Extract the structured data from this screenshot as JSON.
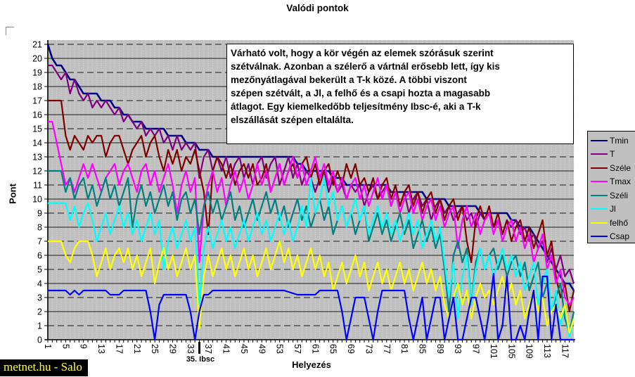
{
  "title": "Valódi pontok",
  "watermark": "metnet.hu - Salo",
  "annotation": {
    "text": "Várható volt, hogy a kör végén az elemek szórásuk szerint\nszétválnak. Azonban a szélerő a vártnál erősebb lett, így kis\nmezőnyátlagával bekerült a T-k közé. A többi viszont\nszépen szétvált, a Jl, a felhő és a csapi hozta a magasabb\nátlagot. Egy kiemelkedőbb teljesítmény Ibsc-é, aki a T-k\nelszállását szépen eltalálta."
  },
  "special_tick": {
    "label": "35. Ibsc",
    "x": 35
  },
  "chart_data": {
    "type": "line",
    "title": "Valódi pontok",
    "xlabel": "Helyezés",
    "ylabel": "Pont",
    "x_range": [
      1,
      119
    ],
    "ylim": [
      0,
      21
    ],
    "x_ticks": [
      1,
      5,
      9,
      13,
      17,
      21,
      25,
      29,
      33,
      37,
      41,
      45,
      49,
      53,
      57,
      61,
      65,
      69,
      73,
      77,
      81,
      85,
      89,
      93,
      97,
      101,
      105,
      109,
      113,
      117
    ],
    "y_ticks": [
      0,
      1,
      2,
      3,
      4,
      5,
      6,
      7,
      8,
      9,
      10,
      11,
      12,
      13,
      14,
      15,
      16,
      17,
      18,
      19,
      20,
      21
    ],
    "grid": {
      "horizontal": true,
      "vertical": true
    },
    "legend_position": "right",
    "plot_bg": "#c0c0c0",
    "series": [
      {
        "name": "Tmin",
        "color": "#000080",
        "width": 2.6,
        "values": [
          21,
          20,
          19.5,
          19.5,
          19,
          18.5,
          18.5,
          18,
          17.5,
          17.5,
          17.5,
          17.5,
          17,
          17,
          17,
          16.5,
          16.5,
          16,
          16,
          15.5,
          15.5,
          15.5,
          15,
          15,
          15,
          15,
          15,
          14.5,
          14.5,
          14.5,
          14.5,
          14,
          14,
          14,
          13.5,
          13.5,
          13.5,
          13,
          13,
          13,
          13,
          13,
          13,
          13,
          13,
          13,
          13,
          13,
          13,
          13,
          13,
          13,
          13,
          13,
          13,
          13,
          12.5,
          12.5,
          12,
          12,
          12,
          12,
          12,
          12,
          11.5,
          11.5,
          11.5,
          11,
          11,
          11,
          11,
          11,
          11,
          11,
          11,
          11,
          11,
          10.5,
          10.5,
          10.5,
          10.5,
          10.5,
          10.5,
          10.5,
          10.5,
          10,
          10,
          10,
          10,
          10,
          9.5,
          9.5,
          9.5,
          9.5,
          9.5,
          9.5,
          9.5,
          9,
          9,
          9,
          9,
          9,
          9,
          9,
          8.5,
          8.5,
          8,
          8,
          8,
          7.5,
          7,
          6.5,
          6,
          5.5,
          5,
          4.5,
          4,
          4,
          3.5
        ]
      },
      {
        "name": "T",
        "color": "#800080",
        "width": 2.2,
        "values": [
          19.5,
          19.5,
          19,
          18.5,
          19,
          17.5,
          18.5,
          17.5,
          17,
          17.5,
          16.5,
          17,
          16.5,
          17,
          16.5,
          16,
          16.5,
          15.5,
          16,
          15.5,
          15,
          15.5,
          14.5,
          15,
          14.5,
          15,
          14,
          14.5,
          13.5,
          14.5,
          13.5,
          14,
          13.5,
          14,
          11.5,
          13,
          13.5,
          12,
          13,
          12,
          13,
          11.5,
          12.5,
          13,
          11.5,
          12.5,
          11,
          12.5,
          13,
          11.5,
          12.5,
          13,
          11,
          12,
          13,
          11.5,
          12.5,
          11,
          12,
          11.5,
          10.5,
          11.5,
          12,
          10.5,
          11.5,
          10.5,
          11,
          10,
          11,
          10.5,
          11,
          9.5,
          10.5,
          11,
          10,
          10.5,
          11,
          9.5,
          10.5,
          9.5,
          10.5,
          9,
          10,
          10.5,
          9.5,
          10,
          8.5,
          9.5,
          10,
          9,
          9.5,
          8.5,
          9,
          9.5,
          8.5,
          9,
          8,
          9,
          8.5,
          9,
          8,
          8.5,
          7.5,
          8.5,
          8,
          8.5,
          7.5,
          8,
          7,
          7.5,
          6.5,
          7,
          5.5,
          6.5,
          5,
          6,
          4.5,
          5,
          4
        ]
      },
      {
        "name": "Széle",
        "color": "#800000",
        "width": 2.2,
        "values": [
          17,
          17,
          17,
          17,
          14.5,
          13.5,
          14.5,
          14,
          13.5,
          14.5,
          14,
          14.5,
          14.5,
          13,
          14,
          14.5,
          14.5,
          13.5,
          12.5,
          13.5,
          14,
          14.5,
          13,
          14,
          14.5,
          13,
          12,
          13.5,
          12.5,
          13.5,
          12,
          13,
          12.5,
          13.5,
          12,
          10.5,
          7.5,
          12,
          13,
          12.5,
          11.5,
          12.5,
          11,
          12,
          12.5,
          11.5,
          12.5,
          11,
          11.5,
          12.5,
          10.5,
          11.5,
          12.5,
          11,
          12,
          12.5,
          11.5,
          12.5,
          13,
          11.5,
          12.5,
          11,
          12,
          12.5,
          11,
          12,
          11,
          12.5,
          11.5,
          12.5,
          11,
          11.5,
          10.5,
          11.5,
          10,
          11,
          11.5,
          10,
          11,
          9.5,
          10.5,
          11,
          9.5,
          10.5,
          9,
          10,
          10.5,
          9,
          10,
          8.5,
          9.5,
          10,
          8.5,
          9.5,
          7,
          5.5,
          8.5,
          9.5,
          8.5,
          9.5,
          8,
          9,
          7.5,
          8.5,
          7,
          8,
          8.5,
          7,
          8,
          6.5,
          7.5,
          8.5,
          6,
          7,
          4.5,
          3,
          4,
          2,
          3.5
        ]
      },
      {
        "name": "Tmax",
        "color": "#ff00ff",
        "width": 2.2,
        "values": [
          15.5,
          15.5,
          14,
          12.5,
          11,
          11.5,
          10.5,
          11.5,
          12.5,
          11.5,
          12.5,
          11.5,
          10.5,
          11.5,
          12,
          12.5,
          11,
          12,
          12.5,
          11.5,
          10.5,
          12,
          12.5,
          11,
          12,
          10.5,
          11.5,
          12.5,
          11,
          9,
          11,
          12,
          10.5,
          11.5,
          5.5,
          9.5,
          11,
          12,
          10.5,
          11.5,
          9.5,
          11,
          12,
          10.5,
          11.5,
          10,
          11,
          12.5,
          11,
          12,
          10.5,
          11.5,
          12.5,
          11,
          12,
          13,
          11.5,
          12.5,
          11,
          12,
          13,
          11.5,
          12.5,
          11,
          12,
          10.5,
          11.5,
          10,
          11,
          11.5,
          10,
          11,
          9.5,
          10.5,
          11.5,
          10,
          11,
          9.5,
          10.5,
          9,
          10,
          10.5,
          9,
          10,
          8.5,
          9.5,
          10,
          8.5,
          9.5,
          8,
          9,
          9.5,
          6.5,
          8.5,
          9.5,
          8,
          9,
          7.5,
          8.5,
          9,
          7.5,
          8.5,
          7,
          8,
          8.5,
          7,
          8,
          6.5,
          7.5,
          5.5,
          6.5,
          7.5,
          5,
          6,
          4,
          5,
          3,
          2.5,
          3
        ]
      },
      {
        "name": "Széli",
        "color": "#008080",
        "width": 2.2,
        "values": [
          12,
          12,
          12,
          12,
          10.5,
          11.5,
          10,
          11,
          11.5,
          10,
          11,
          9.5,
          10.5,
          11.5,
          10,
          11,
          9.5,
          10.5,
          11.5,
          8,
          10,
          11,
          9.5,
          10.5,
          9,
          10,
          11,
          9.5,
          10.5,
          8.5,
          10,
          10.5,
          9,
          10,
          7.5,
          9.5,
          10.5,
          9,
          10,
          8.5,
          9.5,
          10.5,
          8.5,
          9.5,
          8,
          9,
          10,
          8.5,
          9.5,
          10.5,
          9,
          10,
          8.5,
          9.5,
          8,
          9,
          10,
          8.5,
          9.5,
          8,
          9,
          10,
          8.5,
          9.5,
          7.5,
          8.5,
          9.5,
          8,
          9,
          7.5,
          8.5,
          9.5,
          7,
          8,
          9,
          7.5,
          8.5,
          7,
          8,
          9,
          7.5,
          8.5,
          6.5,
          7.5,
          8.5,
          7,
          8,
          6.5,
          7.5,
          5,
          2,
          6,
          7,
          5.5,
          6.5,
          2.5,
          5.5,
          6.5,
          5,
          6,
          6.5,
          5,
          6,
          4.5,
          5.5,
          6,
          4.5,
          5.5,
          3.5,
          4.5,
          5.5,
          3,
          4,
          2,
          3,
          4,
          1.5,
          0.5,
          2
        ]
      },
      {
        "name": "Jl",
        "color": "#00ffff",
        "width": 2.2,
        "values": [
          9.7,
          9.7,
          9.7,
          9.7,
          9.7,
          8.5,
          9.5,
          8,
          9,
          9.7,
          8.5,
          7,
          8,
          9,
          7.5,
          8.5,
          9.5,
          8,
          9,
          7.5,
          8.5,
          7,
          8,
          9,
          7.5,
          8.5,
          5,
          7,
          8,
          6.5,
          7.5,
          8.5,
          7,
          8,
          2.5,
          6.5,
          8,
          6.5,
          7.5,
          8.5,
          7,
          8,
          6.5,
          7.5,
          8.5,
          7,
          8,
          9,
          7.5,
          8.5,
          7,
          8,
          9,
          7.5,
          8.5,
          7,
          8,
          9.5,
          8,
          11.5,
          9,
          10,
          11.5,
          9.5,
          10.5,
          8.5,
          9.5,
          8,
          9,
          10,
          8.5,
          9.5,
          7.5,
          8.5,
          9.5,
          8,
          9,
          7.5,
          8.5,
          7,
          8,
          9,
          7.5,
          8.5,
          6.5,
          7.5,
          8.5,
          7,
          8,
          5.5,
          3,
          5.5,
          1.5,
          4.5,
          6,
          2.5,
          5,
          6.5,
          5,
          6,
          4.5,
          5.5,
          6.5,
          5,
          6,
          4.5,
          5.5,
          3.5,
          4.5,
          5.5,
          2.5,
          4,
          5,
          2,
          3.5,
          1,
          2.5,
          0.2,
          1.5
        ]
      },
      {
        "name": "felhő",
        "color": "#ffff00",
        "width": 2.2,
        "values": [
          7,
          7,
          7,
          7,
          6,
          5.5,
          6.5,
          7,
          7,
          7,
          6,
          4.5,
          5.5,
          6.5,
          5,
          6,
          6.5,
          5.5,
          6.5,
          5,
          6,
          4.5,
          5.5,
          6.5,
          4,
          5.5,
          6.5,
          5,
          6,
          4.5,
          5.5,
          6.5,
          5,
          6,
          0.8,
          4.5,
          6,
          4.5,
          5.5,
          6.5,
          5,
          6,
          4.5,
          5.5,
          6.5,
          5,
          6,
          4.5,
          5.5,
          6.5,
          5,
          6,
          7,
          5.5,
          6.5,
          5,
          6,
          4.5,
          5.5,
          6.5,
          5,
          6,
          4.5,
          5.5,
          3.5,
          4.5,
          5.5,
          4,
          5,
          6,
          4.5,
          5.5,
          3.5,
          4.5,
          5.5,
          4,
          5,
          3.5,
          4.5,
          5.5,
          4,
          5,
          3.5,
          4.5,
          5.5,
          4,
          5,
          3.5,
          4.5,
          2.5,
          1.5,
          3,
          4,
          2.5,
          3.5,
          1.5,
          3,
          4,
          3,
          3.5,
          2.5,
          3.5,
          4.5,
          3,
          4,
          2.5,
          3.5,
          1.5,
          2.5,
          3.5,
          2,
          3,
          1,
          2,
          2.5,
          1.5,
          2.5,
          0.5,
          1.5
        ]
      },
      {
        "name": "Csap",
        "color": "#0000ff",
        "width": 2.2,
        "values": [
          3.5,
          3.5,
          3.5,
          3.5,
          3.5,
          3.2,
          3.5,
          3.2,
          3.5,
          3.5,
          3.5,
          3.5,
          3.5,
          3.5,
          3.2,
          3.2,
          3.2,
          3.5,
          3.5,
          3.5,
          3.5,
          3.5,
          3.5,
          2,
          0,
          2.5,
          3.2,
          3.2,
          3.2,
          3.2,
          3.2,
          3.2,
          2,
          0,
          2,
          3.2,
          3.2,
          3.5,
          3.5,
          3.5,
          3.5,
          3.5,
          3.5,
          3.5,
          3.5,
          3.5,
          3.5,
          3.5,
          3.5,
          3.5,
          3.5,
          3.5,
          3.5,
          3.5,
          3.4,
          3.3,
          3.2,
          3.2,
          3.2,
          3.2,
          3.2,
          3.5,
          3.5,
          3.5,
          3.5,
          3.5,
          2,
          0,
          1.5,
          3,
          3,
          3,
          1.5,
          0,
          2,
          3.5,
          3.5,
          3.5,
          3.5,
          3.5,
          3.5,
          1.5,
          0,
          1.5,
          3,
          0,
          1.5,
          3,
          3,
          0,
          1.5,
          3,
          0,
          0,
          1.5,
          3,
          3,
          1.5,
          0,
          2,
          4.7,
          0,
          1,
          4.5,
          0,
          0,
          1,
          0,
          2,
          3.5,
          0,
          4.5,
          4.5,
          0,
          2.5,
          0,
          0,
          0,
          0
        ]
      }
    ]
  }
}
